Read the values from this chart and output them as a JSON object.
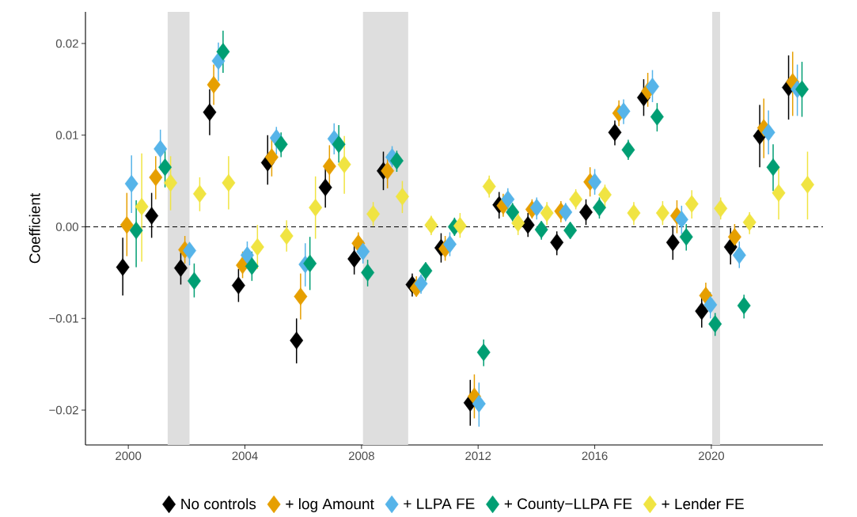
{
  "chart_data": {
    "type": "scatter",
    "ylabel": "Coefficient",
    "xlim": [
      1998.53,
      2023.83
    ],
    "xticks": [
      2000,
      2004,
      2008,
      2012,
      2016,
      2020
    ],
    "ylim": [
      -0.0238,
      0.02345
    ],
    "yticks": [
      {
        "value": -0.02,
        "label": "−0.02"
      },
      {
        "value": -0.01,
        "label": "−0.01"
      },
      {
        "value": 0,
        "label": "0.00"
      },
      0.01,
      0.02
    ],
    "marker": "diamond",
    "grid": false,
    "legend": "bottom",
    "ref_lines": [
      {
        "axis": "y",
        "value": 0,
        "color": "#000000",
        "line_style": "dashed"
      }
    ],
    "bands": [
      {
        "axis": "x",
        "from": 2001.35,
        "to": 2002.1,
        "color": "#dedede"
      },
      {
        "axis": "x",
        "from": 2008.05,
        "to": 2009.6,
        "color": "#dedede"
      },
      {
        "axis": "x",
        "from": 2020.03,
        "to": 2020.3,
        "color": "#dedede"
      }
    ],
    "series": [
      {
        "name": "No controls",
        "color": "#000000",
        "x": [
          1999.81,
          2000.8,
          2001.8,
          2002.79,
          2003.78,
          2004.78,
          2005.77,
          2006.76,
          2007.75,
          2008.75,
          2009.74,
          2010.73,
          2011.73,
          2012.72,
          2013.71,
          2014.7,
          2015.7,
          2016.69,
          2017.68,
          2018.68,
          2019.67,
          2020.66,
          2021.66,
          2022.65
        ],
        "values": [
          -0.0044,
          0.0012,
          -0.0045,
          0.0125,
          -0.0064,
          0.007,
          -0.0124,
          0.0043,
          -0.0035,
          0.0061,
          -0.0063,
          -0.0023,
          -0.0192,
          0.0024,
          0.0002,
          -0.0017,
          0.0016,
          0.0103,
          0.0141,
          -0.0017,
          -0.0092,
          -0.0022,
          0.0099,
          0.0152
        ],
        "errors": [
          [
            -0.0075,
            -0.0012
          ],
          [
            -0.0012,
            0.0037
          ],
          [
            -0.0063,
            -0.0028
          ],
          [
            0.01,
            0.015
          ],
          [
            -0.0082,
            -0.0046
          ],
          [
            0.0046,
            0.01
          ],
          [
            -0.0149,
            -0.01
          ],
          [
            0.0021,
            0.0065
          ],
          [
            -0.0052,
            -0.0019
          ],
          [
            0.004,
            0.0082
          ],
          [
            -0.0076,
            -0.0051
          ],
          [
            -0.0039,
            -0.0007
          ],
          [
            -0.0217,
            -0.0167
          ],
          [
            0.0009,
            0.0038
          ],
          [
            -0.0011,
            0.0015
          ],
          [
            -0.0031,
            -0.0005
          ],
          [
            0.0002,
            0.003
          ],
          [
            0.0089,
            0.0116
          ],
          [
            0.0121,
            0.0161
          ],
          [
            -0.0036,
            0.0001
          ],
          [
            -0.011,
            -0.0073
          ],
          [
            -0.0041,
            -0.0001
          ],
          [
            0.0065,
            0.0133
          ],
          [
            0.0117,
            0.0187
          ]
        ]
      },
      {
        "name": "+ log Amount",
        "color": "#e69f00",
        "x": [
          1999.95,
          2000.94,
          2001.94,
          2002.93,
          2003.92,
          2004.92,
          2005.91,
          2006.9,
          2007.89,
          2008.89,
          2009.88,
          2010.87,
          2011.87,
          2012.86,
          2013.85,
          2014.84,
          2015.84,
          2016.83,
          2017.82,
          2018.82,
          2019.81,
          2020.8,
          2021.8,
          2022.79
        ],
        "values": [
          0.0002,
          0.0054,
          -0.0025,
          0.0155,
          -0.0042,
          0.0076,
          -0.0076,
          0.0066,
          -0.0018,
          0.0061,
          -0.0067,
          -0.0024,
          -0.0185,
          0.0023,
          0.0019,
          0.0017,
          0.0049,
          0.0124,
          0.0148,
          0.0012,
          -0.0075,
          -0.0011,
          0.0108,
          0.0158
        ],
        "errors": [
          [
            -0.0032,
            0.0037
          ],
          [
            0.003,
            0.0077
          ],
          [
            -0.004,
            -0.001
          ],
          [
            0.0133,
            0.0177
          ],
          [
            -0.0056,
            -0.0027
          ],
          [
            0.0055,
            0.0098
          ],
          [
            -0.0101,
            -0.0051
          ],
          [
            0.0044,
            0.0089
          ],
          [
            -0.0029,
            -0.0006
          ],
          [
            0.0042,
            0.0079
          ],
          [
            -0.0076,
            -0.0054
          ],
          [
            -0.0037,
            -0.001
          ],
          [
            -0.0209,
            -0.0161
          ],
          [
            0.0011,
            0.0036
          ],
          [
            0.0009,
            0.003
          ],
          [
            0.0005,
            0.0028
          ],
          [
            0.0033,
            0.0065
          ],
          [
            0.011,
            0.0138
          ],
          [
            0.0131,
            0.0168
          ],
          [
            -0.0007,
            0.0029
          ],
          [
            -0.009,
            -0.0061
          ],
          [
            -0.0026,
            0.0003
          ],
          [
            0.0075,
            0.014
          ],
          [
            0.0121,
            0.0191
          ]
        ]
      },
      {
        "name": "+ LLPA FE",
        "color": "#56b4e9",
        "x": [
          2000.11,
          2001.1,
          2002.1,
          2003.09,
          2004.08,
          2005.08,
          2006.07,
          2007.06,
          2008.05,
          2009.05,
          2010.04,
          2011.03,
          2012.03,
          2013.02,
          2014.01,
          2015.0,
          2016.0,
          2016.99,
          2017.98,
          2018.98,
          2019.97,
          2020.96,
          2021.96,
          2022.95
        ],
        "values": [
          0.0047,
          0.0085,
          -0.0026,
          0.0181,
          -0.0031,
          0.0097,
          -0.0041,
          0.0096,
          -0.0027,
          0.0076,
          -0.0062,
          -0.0019,
          -0.0193,
          0.003,
          0.0021,
          0.0016,
          0.0049,
          0.0126,
          0.0153,
          0.0008,
          -0.0085,
          -0.0031,
          0.0103,
          0.015
        ],
        "errors": [
          [
            0.0015,
            0.0078
          ],
          [
            0.0062,
            0.0106
          ],
          [
            -0.0042,
            -0.002
          ],
          [
            0.0159,
            0.0201
          ],
          [
            -0.0045,
            -0.0016
          ],
          [
            0.0079,
            0.0109
          ],
          [
            -0.0065,
            -0.0018
          ],
          [
            0.0079,
            0.0113
          ],
          [
            -0.004,
            -0.0015
          ],
          [
            0.0065,
            0.0088
          ],
          [
            -0.0073,
            -0.0052
          ],
          [
            -0.0032,
            -0.0006
          ],
          [
            -0.0218,
            -0.017
          ],
          [
            0.0018,
            0.0042
          ],
          [
            0.0008,
            0.0032
          ],
          [
            0.0006,
            0.0026
          ],
          [
            0.0035,
            0.0063
          ],
          [
            0.0112,
            0.0139
          ],
          [
            0.0136,
            0.0171
          ],
          [
            -0.0008,
            0.0023
          ],
          [
            -0.01,
            -0.0071
          ],
          [
            -0.0045,
            -0.0016
          ],
          [
            0.0079,
            0.0127
          ],
          [
            0.0121,
            0.0177
          ]
        ]
      },
      {
        "name": "+ County−LLPA FE",
        "color": "#009e73",
        "x": [
          2000.27,
          2001.26,
          2002.26,
          2003.25,
          2004.24,
          2005.24,
          2006.23,
          2007.22,
          2008.21,
          2009.21,
          2010.2,
          2011.19,
          2012.19,
          2013.18,
          2014.17,
          2015.16,
          2016.16,
          2017.15,
          2018.14,
          2019.14,
          2020.13,
          2021.12,
          2022.12,
          2023.11
        ],
        "values": [
          -0.0004,
          0.0065,
          -0.0059,
          0.0191,
          -0.0043,
          0.009,
          -0.004,
          0.009,
          -0.005,
          0.0072,
          -0.0048,
          0.0,
          -0.0137,
          0.0016,
          -0.0003,
          -0.0004,
          0.0021,
          0.0084,
          0.012,
          -0.0011,
          -0.0106,
          -0.0086,
          0.0065,
          0.015
        ],
        "errors": [
          [
            -0.0044,
            0.0029
          ],
          [
            0.0043,
            0.0085
          ],
          [
            -0.0077,
            -0.004
          ],
          [
            0.0168,
            0.0214
          ],
          [
            -0.0059,
            -0.0027
          ],
          [
            0.0076,
            0.0103
          ],
          [
            -0.0069,
            -0.0011
          ],
          [
            0.007,
            0.0111
          ],
          [
            -0.0065,
            -0.0036
          ],
          [
            0.006,
            0.0083
          ],
          [
            -0.0059,
            -0.0039
          ],
          [
            -0.001,
            0.001
          ],
          [
            -0.0152,
            -0.0123
          ],
          [
            0.0006,
            0.0026
          ],
          [
            -0.0014,
            0.0006
          ],
          [
            -0.0013,
            0.0005
          ],
          [
            0.0009,
            0.0032
          ],
          [
            0.0073,
            0.0095
          ],
          [
            0.0104,
            0.0135
          ],
          [
            -0.0026,
            0.0003
          ],
          [
            -0.0119,
            -0.0094
          ],
          [
            -0.01,
            -0.0074
          ],
          [
            0.0039,
            0.009
          ],
          [
            0.012,
            0.018
          ]
        ]
      },
      {
        "name": "+ Lender FE",
        "color": "#f0e442",
        "x": [
          2000.46,
          2001.45,
          2002.45,
          2003.44,
          2004.43,
          2005.43,
          2006.42,
          2007.41,
          2008.4,
          2009.4,
          2010.39,
          2011.38,
          2012.38,
          2013.37,
          2014.36,
          2015.35,
          2016.35,
          2017.34,
          2018.33,
          2019.33,
          2020.32,
          2021.31,
          2022.31,
          2023.3
        ],
        "values": [
          0.0022,
          0.0048,
          0.0036,
          0.0048,
          -0.0022,
          -0.001,
          0.0021,
          0.0068,
          0.0014,
          0.0033,
          0.0002,
          0.0001,
          0.0044,
          0.0004,
          0.0015,
          0.003,
          0.0035,
          0.0015,
          0.0015,
          0.0025,
          0.002,
          0.0005,
          0.0037,
          0.0046
        ],
        "errors": [
          [
            -0.0038,
            0.008
          ],
          [
            0.0018,
            0.0077
          ],
          [
            0.0017,
            0.0054
          ],
          [
            0.0019,
            0.0077
          ],
          [
            -0.0046,
            0.0002
          ],
          [
            -0.0027,
            0.0007
          ],
          [
            -0.0013,
            0.0055
          ],
          [
            0.0036,
            0.0099
          ],
          [
            0.0001,
            0.0027
          ],
          [
            0.0015,
            0.005
          ],
          [
            -0.0009,
            0.0012
          ],
          [
            -0.0012,
            0.0015
          ],
          [
            0.0032,
            0.0056
          ],
          [
            -0.0009,
            0.0017
          ],
          [
            0.0002,
            0.0027
          ],
          [
            0.0019,
            0.0041
          ],
          [
            0.002,
            0.0046
          ],
          [
            0.0002,
            0.0027
          ],
          [
            0.0002,
            0.0028
          ],
          [
            0.0009,
            0.004
          ],
          [
            0.0008,
            0.0032
          ],
          [
            -0.0008,
            0.0016
          ],
          [
            0.0008,
            0.0066
          ],
          [
            0.0008,
            0.0082
          ]
        ]
      }
    ]
  }
}
